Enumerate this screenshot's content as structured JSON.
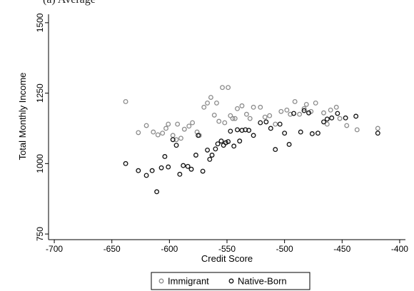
{
  "caption": "(a) Average",
  "chart_data": {
    "type": "scatter",
    "title": "",
    "xlabel": "Credit Score",
    "ylabel": "Total Monthly Income",
    "xlim": [
      -705,
      -395
    ],
    "ylim": [
      730,
      1530
    ],
    "xticks": [
      -700,
      -650,
      -600,
      -550,
      -500,
      -450,
      -400
    ],
    "yticks": [
      750,
      1000,
      1250,
      1500
    ],
    "grid": false,
    "legend_position": "bottom-center",
    "series": [
      {
        "name": "Immigrant",
        "color": "#8c8c8c",
        "marker": "hollow-circle",
        "points": [
          [
            -638,
            1220
          ],
          [
            -627,
            1110
          ],
          [
            -620,
            1135
          ],
          [
            -614,
            1112
          ],
          [
            -610,
            1102
          ],
          [
            -606,
            1108
          ],
          [
            -603,
            1125
          ],
          [
            -601,
            1140
          ],
          [
            -597,
            1100
          ],
          [
            -594,
            1085
          ],
          [
            -593,
            1140
          ],
          [
            -590,
            1090
          ],
          [
            -587,
            1122
          ],
          [
            -583,
            1133
          ],
          [
            -580,
            1145
          ],
          [
            -576,
            1112
          ],
          [
            -574,
            1100
          ],
          [
            -570,
            1200
          ],
          [
            -567,
            1215
          ],
          [
            -564,
            1235
          ],
          [
            -561,
            1172
          ],
          [
            -559,
            1215
          ],
          [
            -557,
            1150
          ],
          [
            -554,
            1270
          ],
          [
            -552,
            1145
          ],
          [
            -549,
            1270
          ],
          [
            -547,
            1170
          ],
          [
            -545,
            1160
          ],
          [
            -543,
            1160
          ],
          [
            -541,
            1195
          ],
          [
            -537,
            1205
          ],
          [
            -533,
            1175
          ],
          [
            -530,
            1160
          ],
          [
            -527,
            1200
          ],
          [
            -521,
            1200
          ],
          [
            -517,
            1165
          ],
          [
            -513,
            1170
          ],
          [
            -508,
            1140
          ],
          [
            -503,
            1185
          ],
          [
            -498,
            1190
          ],
          [
            -495,
            1175
          ],
          [
            -491,
            1220
          ],
          [
            -487,
            1175
          ],
          [
            -483,
            1195
          ],
          [
            -481,
            1210
          ],
          [
            -477,
            1185
          ],
          [
            -473,
            1215
          ],
          [
            -466,
            1180
          ],
          [
            -463,
            1140
          ],
          [
            -460,
            1190
          ],
          [
            -455,
            1200
          ],
          [
            -452,
            1160
          ],
          [
            -446,
            1135
          ],
          [
            -437,
            1120
          ],
          [
            -419,
            1125
          ]
        ]
      },
      {
        "name": "Native-Born",
        "color": "#111111",
        "marker": "hollow-circle",
        "points": [
          [
            -638,
            1000
          ],
          [
            -627,
            975
          ],
          [
            -620,
            958
          ],
          [
            -615,
            975
          ],
          [
            -611,
            900
          ],
          [
            -607,
            985
          ],
          [
            -604,
            1025
          ],
          [
            -601,
            988
          ],
          [
            -597,
            1085
          ],
          [
            -594,
            1065
          ],
          [
            -591,
            962
          ],
          [
            -588,
            993
          ],
          [
            -584,
            990
          ],
          [
            -581,
            980
          ],
          [
            -577,
            1030
          ],
          [
            -575,
            1100
          ],
          [
            -571,
            973
          ],
          [
            -567,
            1048
          ],
          [
            -565,
            1015
          ],
          [
            -563,
            1030
          ],
          [
            -560,
            1052
          ],
          [
            -558,
            1070
          ],
          [
            -555,
            1080
          ],
          [
            -553,
            1065
          ],
          [
            -551,
            1074
          ],
          [
            -549,
            1078
          ],
          [
            -547,
            1115
          ],
          [
            -544,
            1062
          ],
          [
            -541,
            1120
          ],
          [
            -539,
            1080
          ],
          [
            -537,
            1118
          ],
          [
            -534,
            1120
          ],
          [
            -531,
            1118
          ],
          [
            -527,
            1100
          ],
          [
            -521,
            1145
          ],
          [
            -516,
            1148
          ],
          [
            -512,
            1125
          ],
          [
            -508,
            1050
          ],
          [
            -504,
            1140
          ],
          [
            -500,
            1108
          ],
          [
            -496,
            1068
          ],
          [
            -492,
            1178
          ],
          [
            -486,
            1112
          ],
          [
            -483,
            1188
          ],
          [
            -479,
            1180
          ],
          [
            -476,
            1106
          ],
          [
            -471,
            1108
          ],
          [
            -466,
            1148
          ],
          [
            -463,
            1158
          ],
          [
            -459,
            1162
          ],
          [
            -454,
            1178
          ],
          [
            -447,
            1162
          ],
          [
            -438,
            1168
          ],
          [
            -419,
            1108
          ]
        ]
      }
    ]
  }
}
